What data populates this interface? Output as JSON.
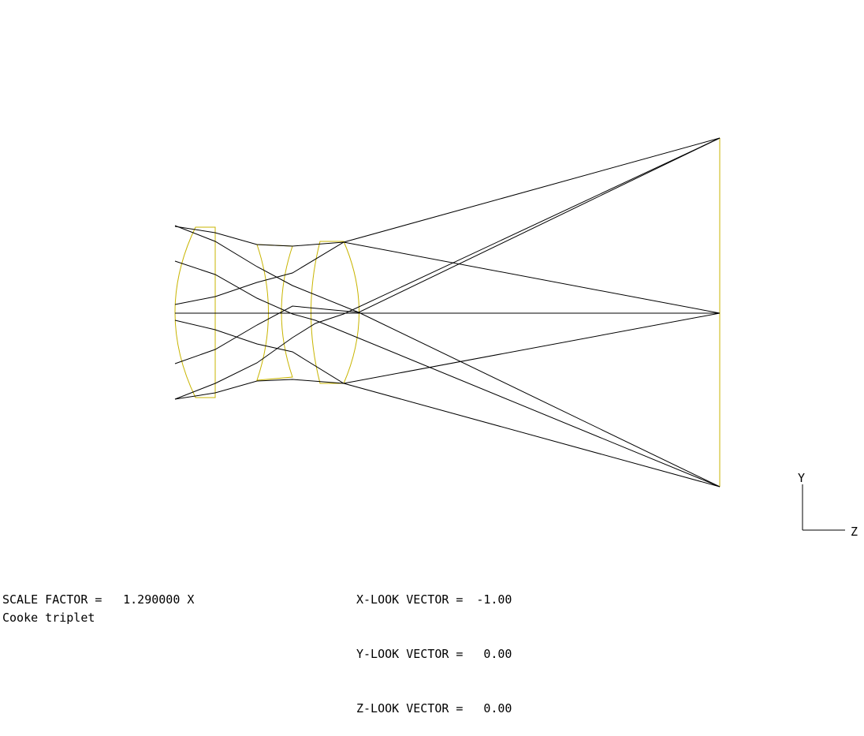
{
  "view": {
    "look_vectors": [
      {
        "label": "X-LOOK VECTOR =",
        "value": "-1.00"
      },
      {
        "label": "Y-LOOK VECTOR =",
        "value": "0.00"
      },
      {
        "label": "Z-LOOK VECTOR =",
        "value": "0.00"
      }
    ],
    "scale_factor_label": "SCALE FACTOR =",
    "scale_factor_value": "1.290000 X",
    "title": "Cooke triplet"
  },
  "axes": {
    "y_label": "Y",
    "z_label": "Z"
  },
  "colors": {
    "lens": "#c8b400",
    "ray": "#000000",
    "background": "#ffffff"
  }
}
